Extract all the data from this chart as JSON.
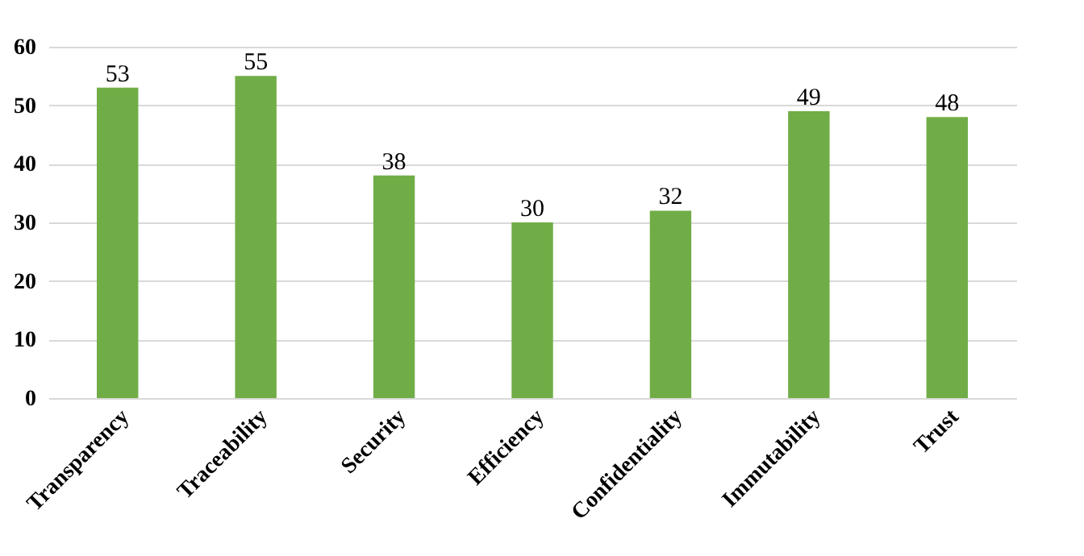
{
  "chart_data": {
    "type": "bar",
    "categories": [
      "Transparency",
      "Traceability",
      "Security",
      "Efficiency",
      "Confidentiality",
      "Immutability",
      "Trust"
    ],
    "values": [
      53,
      55,
      38,
      30,
      32,
      49,
      48
    ],
    "color": "#70ad47",
    "ylim": [
      0,
      60
    ],
    "yticks": [
      0,
      10,
      20,
      30,
      40,
      50,
      60
    ],
    "grid": "y",
    "data_labels": true
  }
}
